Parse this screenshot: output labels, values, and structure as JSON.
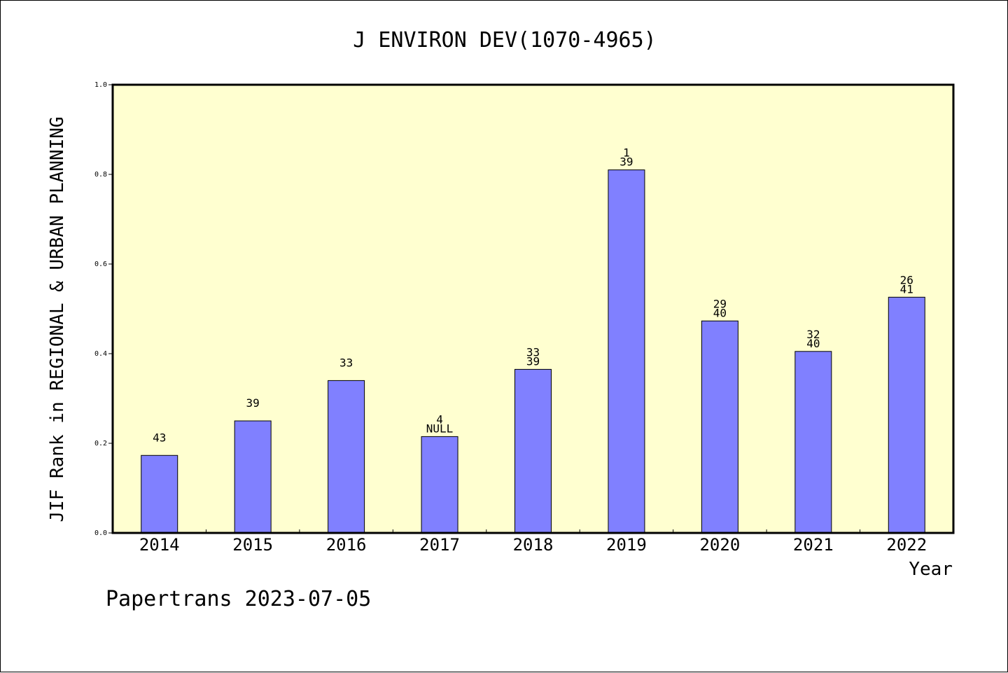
{
  "chart_data": {
    "type": "bar",
    "title": "J ENVIRON DEV(1070-4965)",
    "xlabel": "Year",
    "ylabel": "JIF Rank in REGIONAL & URBAN PLANNING",
    "ylim": [
      0,
      1.0
    ],
    "yticks": [
      "0.0",
      "0.2",
      "0.4",
      "0.6",
      "0.8",
      "1.0"
    ],
    "categories": [
      "2014",
      "2015",
      "2016",
      "2017",
      "2018",
      "2019",
      "2020",
      "2021",
      "2022"
    ],
    "values": [
      0.173,
      0.25,
      0.34,
      0.215,
      0.365,
      0.81,
      0.473,
      0.405,
      0.526
    ],
    "label_top": [
      "",
      "",
      "",
      "4",
      "33",
      "1",
      "29",
      "32",
      "26"
    ],
    "label_bottom": [
      "43",
      "39",
      "33",
      "NULL",
      "39",
      "39",
      "40",
      "40",
      "41"
    ],
    "grid": false,
    "colors": {
      "bar": "#8080ff",
      "plot_background": "#ffffd0",
      "page_background": "#ffffff"
    }
  },
  "footer": "Papertrans 2023-07-05"
}
